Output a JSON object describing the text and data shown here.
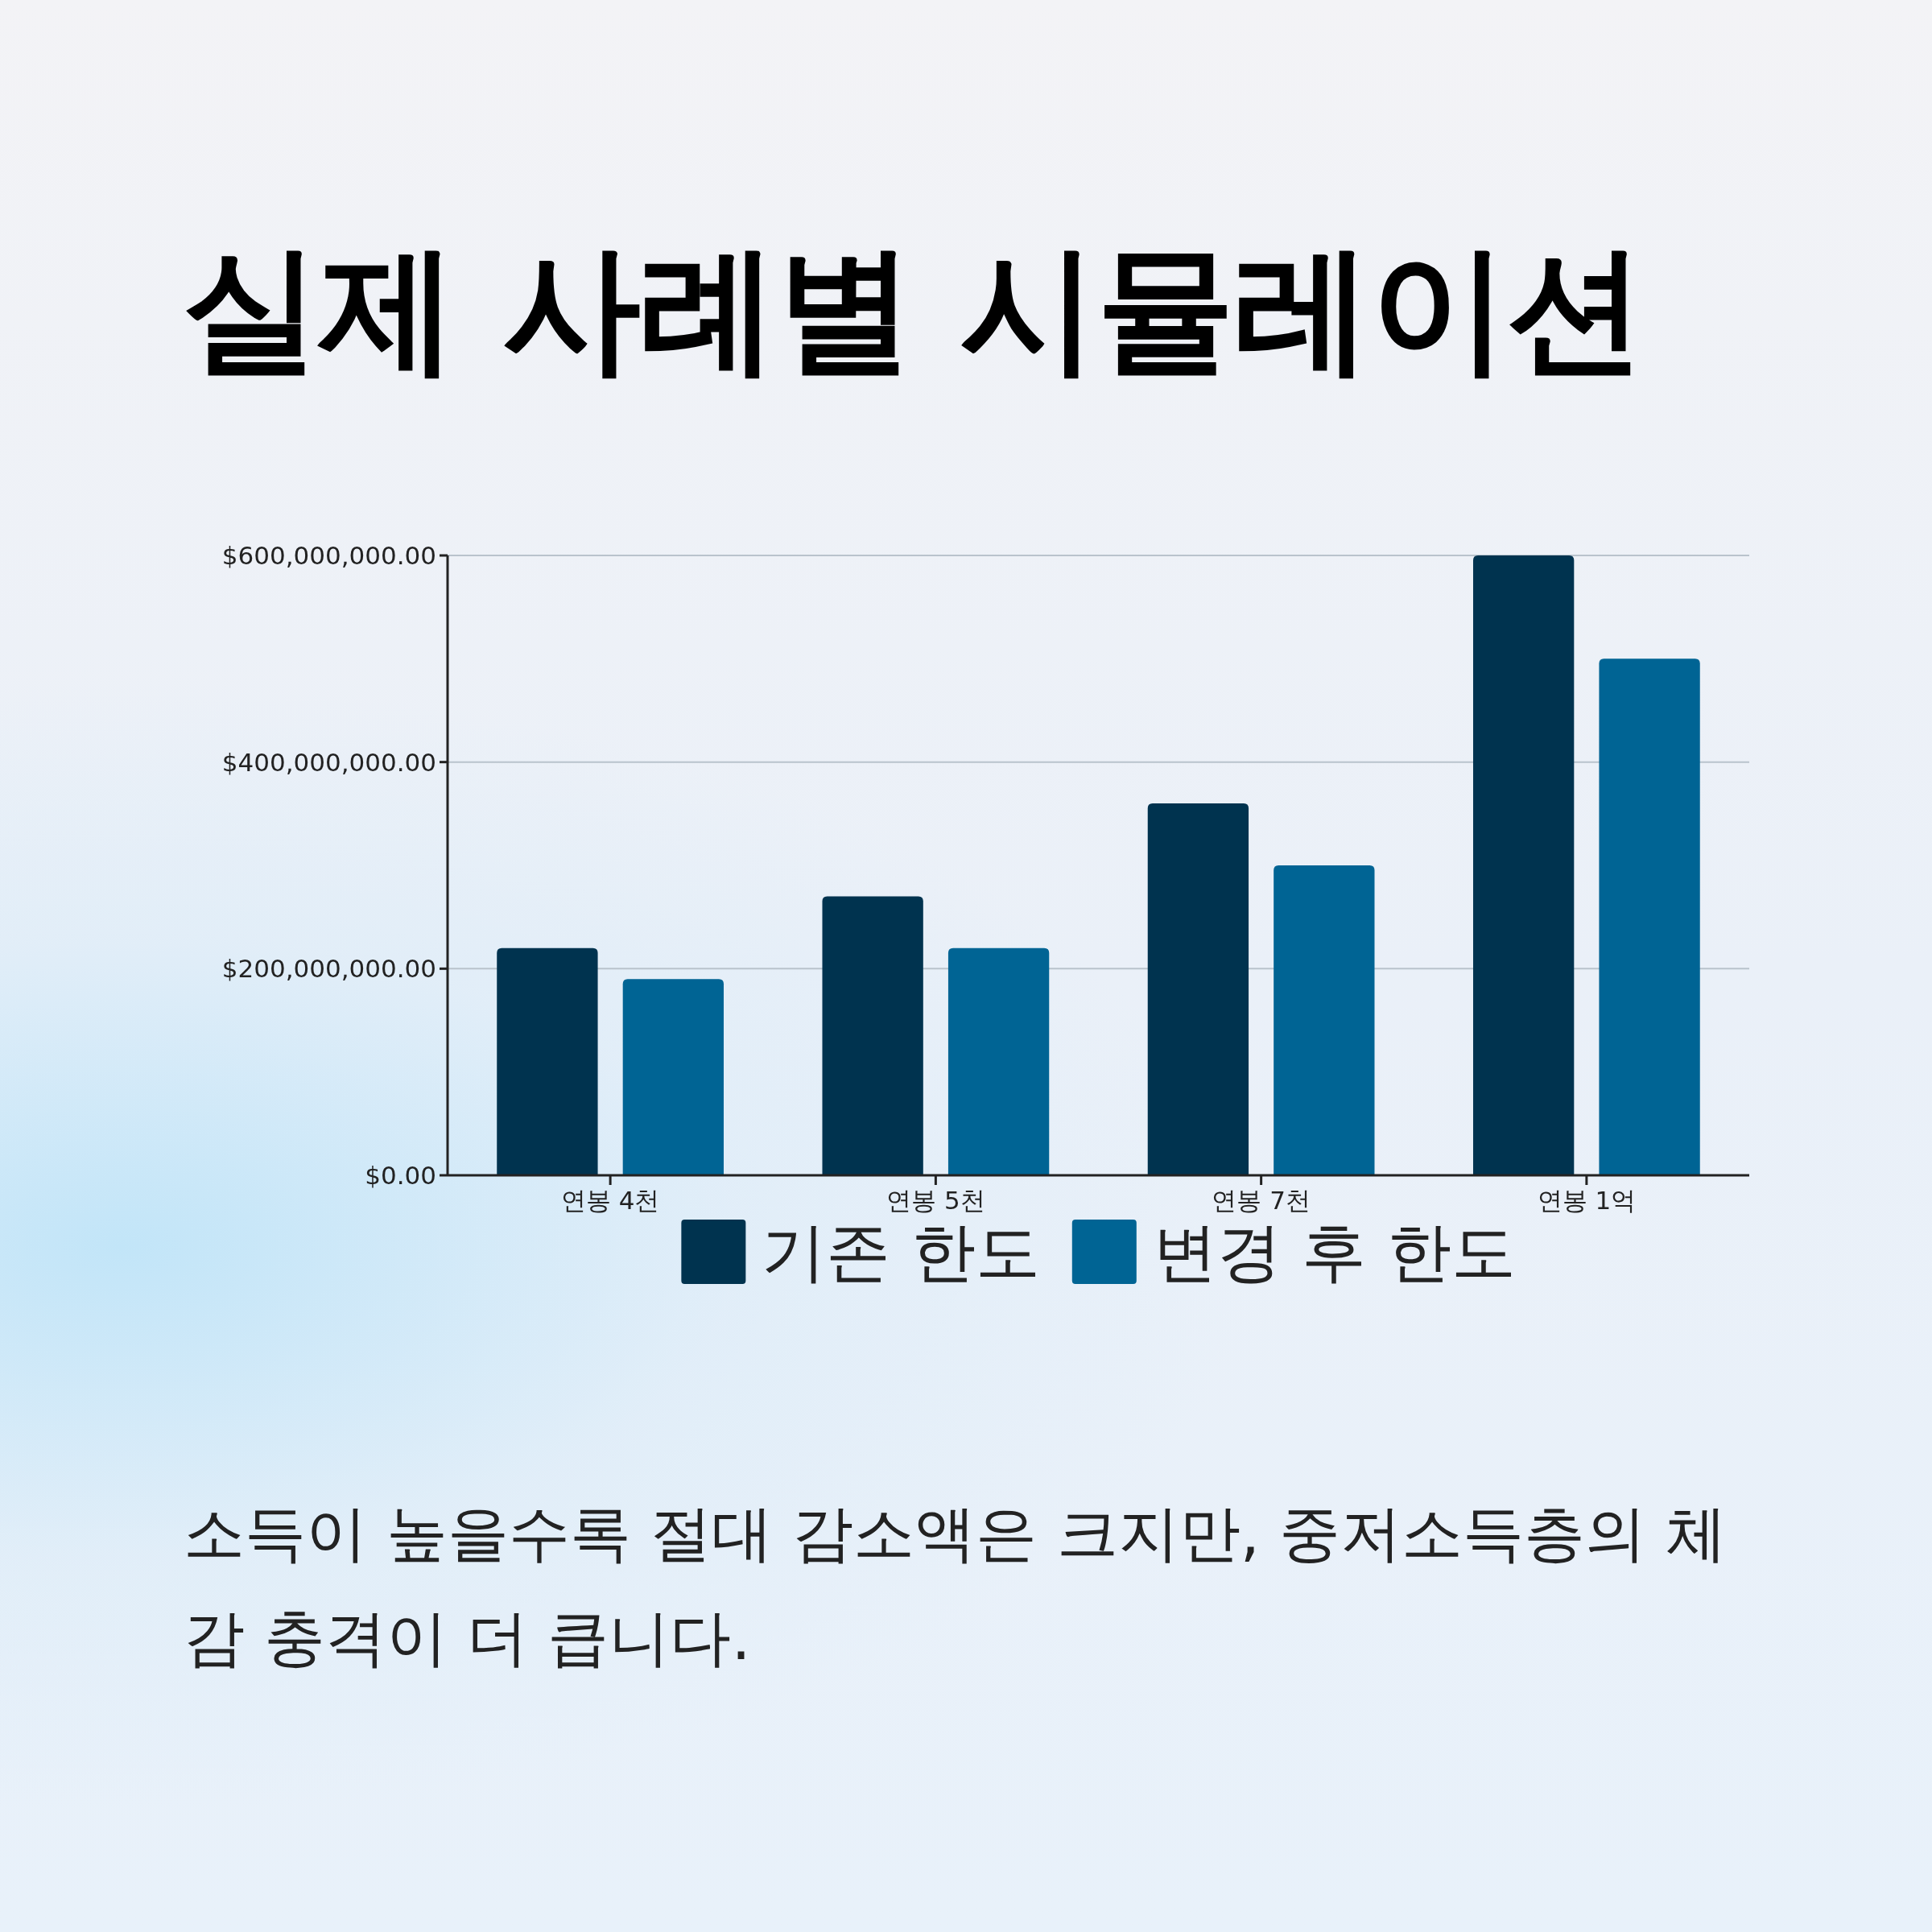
{
  "chart_data": {
    "type": "bar",
    "title": "실제 사례별 시뮬레이션",
    "categories": [
      "연봉 4천",
      "연봉 5천",
      "연봉 7천",
      "연봉 1억"
    ],
    "series": [
      {
        "name": "기존 한도",
        "color": "#00334f",
        "values": [
          220000000,
          270000000,
          360000000,
          600000000
        ]
      },
      {
        "name": "변경 후 한도",
        "color": "#006494",
        "values": [
          190000000,
          220000000,
          300000000,
          500000000
        ]
      }
    ],
    "ylim": [
      0,
      600000000
    ],
    "yticks": [
      {
        "value": 0,
        "label": "$0.00"
      },
      {
        "value": 200000000,
        "label": "$200,000,000.00"
      },
      {
        "value": 400000000,
        "label": "$400,000,000.00"
      },
      {
        "value": 600000000,
        "label": "$600,000,000.00"
      }
    ],
    "grid": "y",
    "legend": "bottom",
    "annotations": [
      "소득이 높을수록 절대 감소액은 크지만, 중저소득층의 체감 충격이 더 큽니다."
    ]
  }
}
